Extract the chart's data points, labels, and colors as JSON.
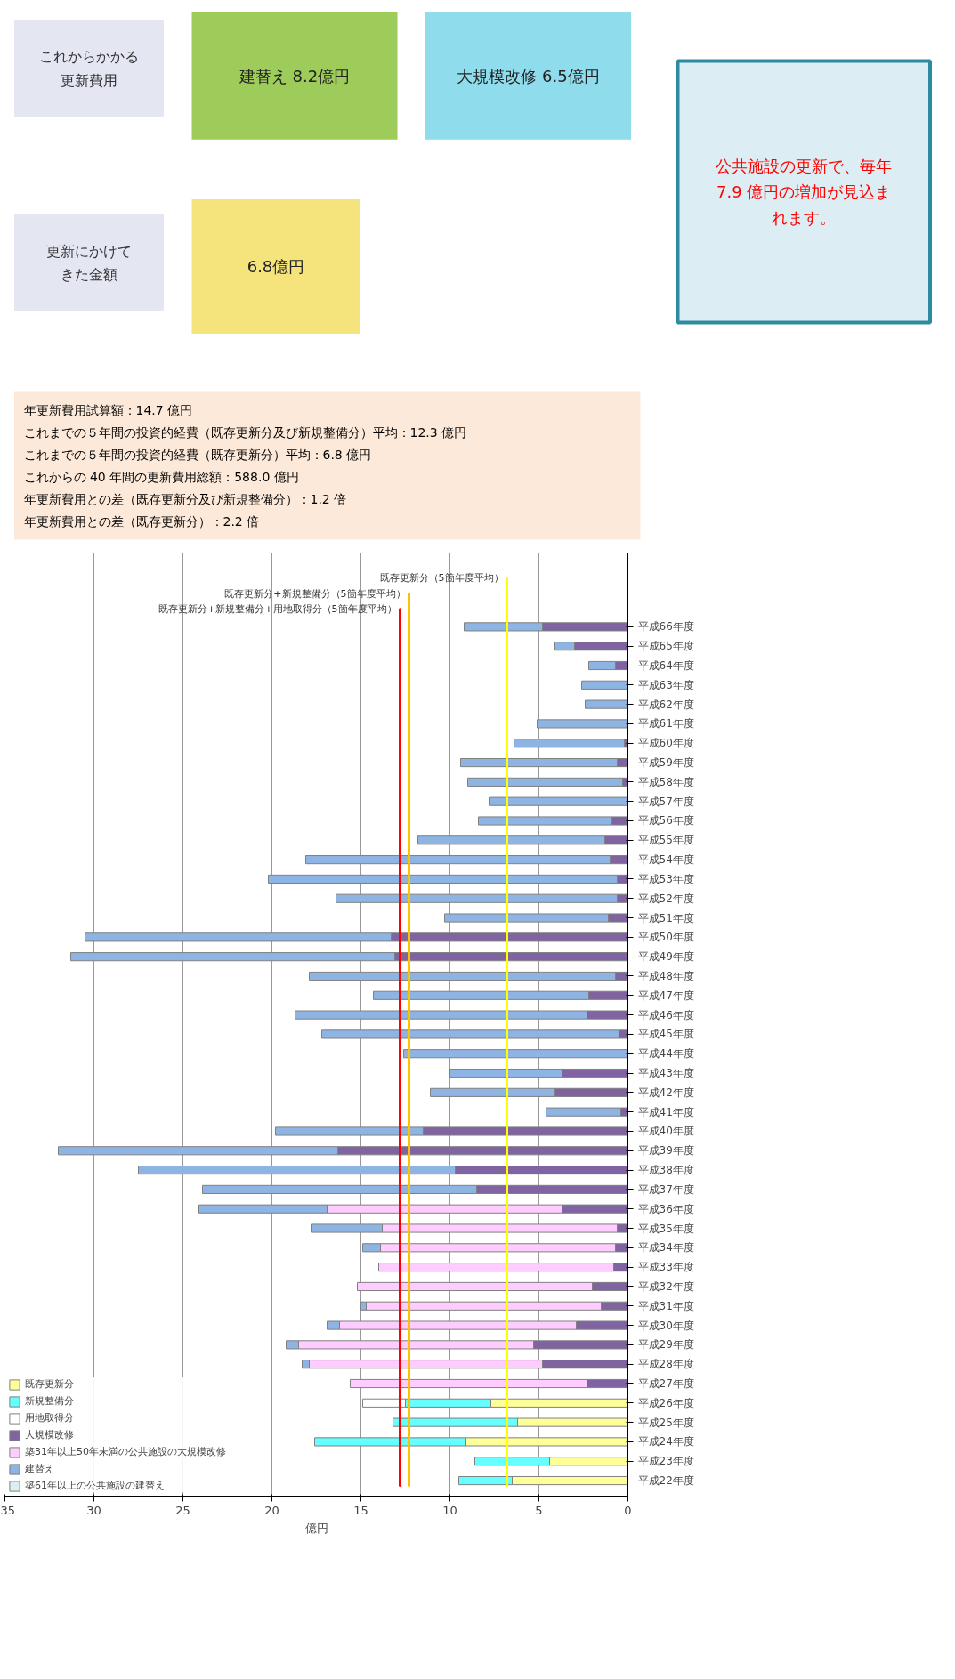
{
  "chart_data": [
    {
      "type": "other",
      "annotations": [
        "これからかかる更新費用",
        "建替え 8.2億円",
        "大規模改修 6.5億円",
        "更新にかけてきた金額",
        "6.8億円",
        "公共施設の更新で、毎年 7.9 億円の増加が見込まれます。"
      ]
    },
    {
      "type": "bar",
      "orientation": "horizontal",
      "stacked": true,
      "xlabel": "億円",
      "annotations": [
        "年更新費用試算額：14.7 億円",
        "これまでの５年間の投資的経費（既存更新分及び新規整備分）平均：12.3 億円",
        "これまでの５年間の投資的経費（既存更新分）平均：6.8 億円",
        "これからの 40 年間の更新費用総額：588.0 億円",
        "年更新費用との差（既存更新分及び新規整備分）：1.2 倍",
        "年更新費用との差（既存更新分）：2.2 倍"
      ],
      "categories": [
        "平成66年度",
        "平成65年度",
        "平成64年度",
        "平成63年度",
        "平成62年度",
        "平成61年度",
        "平成60年度",
        "平成59年度",
        "平成58年度",
        "平成57年度",
        "平成56年度",
        "平成55年度",
        "平成54年度",
        "平成53年度",
        "平成52年度",
        "平成51年度",
        "平成50年度",
        "平成49年度",
        "平成48年度",
        "平成47年度",
        "平成46年度",
        "平成45年度",
        "平成44年度",
        "平成43年度",
        "平成42年度",
        "平成41年度",
        "平成40年度",
        "平成39年度",
        "平成38年度",
        "平成37年度",
        "平成36年度",
        "平成35年度",
        "平成34年度",
        "平成33年度",
        "平成32年度",
        "平成31年度",
        "平成30年度",
        "平成29年度",
        "平成28年度",
        "平成27年度",
        "平成26年度",
        "平成25年度",
        "平成24年度",
        "平成23年度",
        "平成22年度"
      ],
      "series": [
        {
          "name": "既存更新分",
          "color": "#ffff99",
          "values": [
            null,
            null,
            null,
            null,
            null,
            null,
            null,
            null,
            null,
            null,
            null,
            null,
            null,
            null,
            null,
            null,
            null,
            null,
            null,
            null,
            null,
            null,
            null,
            null,
            null,
            null,
            null,
            null,
            null,
            null,
            null,
            null,
            null,
            null,
            null,
            null,
            null,
            null,
            null,
            null,
            7.7,
            6.2,
            9.1,
            4.4,
            6.5
          ]
        },
        {
          "name": "新規整備分",
          "color": "#66ffff",
          "values": [
            null,
            null,
            null,
            null,
            null,
            null,
            null,
            null,
            null,
            null,
            null,
            null,
            null,
            null,
            null,
            null,
            null,
            null,
            null,
            null,
            null,
            null,
            null,
            null,
            null,
            null,
            null,
            null,
            null,
            null,
            null,
            null,
            null,
            null,
            null,
            null,
            null,
            null,
            null,
            null,
            4.8,
            7.0,
            8.5,
            4.2,
            3.0
          ]
        },
        {
          "name": "用地取得分",
          "color": "#ffffff",
          "values": [
            null,
            null,
            null,
            null,
            null,
            null,
            null,
            null,
            null,
            null,
            null,
            null,
            null,
            null,
            null,
            null,
            null,
            null,
            null,
            null,
            null,
            null,
            null,
            null,
            null,
            null,
            null,
            null,
            null,
            null,
            null,
            null,
            null,
            null,
            null,
            null,
            null,
            null,
            null,
            null,
            2.4,
            null,
            null,
            null,
            null
          ]
        },
        {
          "name": "大規模改修",
          "color": "#8064a2",
          "values": [
            4.8,
            3.0,
            0.7,
            null,
            null,
            null,
            0.2,
            0.6,
            0.3,
            null,
            0.9,
            1.3,
            1.0,
            0.6,
            0.6,
            1.1,
            13.3,
            13.1,
            0.7,
            2.2,
            2.3,
            0.5,
            null,
            3.7,
            4.1,
            0.4,
            11.5,
            16.3,
            9.7,
            8.5,
            3.7,
            0.6,
            0.7,
            0.8,
            2.0,
            1.5,
            2.9,
            5.3,
            4.8,
            2.3,
            null,
            null,
            null,
            null,
            null
          ]
        },
        {
          "name": "築31年以上50年未満の公共施設の大規模改修",
          "color": "#ffccff",
          "values": [
            null,
            null,
            null,
            null,
            null,
            null,
            null,
            null,
            null,
            null,
            null,
            null,
            null,
            null,
            null,
            null,
            null,
            null,
            null,
            null,
            null,
            null,
            null,
            null,
            null,
            null,
            null,
            null,
            null,
            null,
            13.2,
            13.2,
            13.2,
            13.2,
            13.2,
            13.2,
            13.3,
            13.2,
            13.1,
            13.3,
            null,
            null,
            null,
            null,
            null
          ]
        },
        {
          "name": "建替え",
          "color": "#8db4e2",
          "values": [
            4.4,
            1.1,
            1.5,
            2.6,
            2.4,
            5.1,
            6.2,
            8.8,
            8.7,
            7.8,
            7.5,
            10.5,
            17.1,
            19.6,
            15.8,
            9.2,
            17.2,
            18.2,
            17.2,
            12.1,
            16.4,
            16.7,
            12.6,
            6.3,
            7.0,
            4.2,
            8.3,
            15.7,
            17.8,
            15.4,
            7.2,
            4.0,
            1.0,
            null,
            null,
            0.3,
            0.7,
            0.7,
            0.4,
            null,
            null,
            null,
            null,
            null,
            null
          ]
        },
        {
          "name": "築61年以上の公共施設の建替え",
          "color": "#daeef3",
          "values": [
            null,
            null,
            null,
            null,
            null,
            null,
            null,
            null,
            null,
            null,
            null,
            null,
            null,
            null,
            null,
            null,
            null,
            null,
            null,
            null,
            null,
            null,
            null,
            null,
            null,
            null,
            null,
            null,
            null,
            null,
            null,
            null,
            null,
            null,
            null,
            null,
            null,
            null,
            null,
            null,
            null,
            null,
            null,
            null,
            null
          ]
        }
      ],
      "ref_lines": [
        {
          "axis": "x",
          "value": 12.3,
          "label": "既存更新分+新規整備分（5箇年度平均）",
          "color": "#ffc000"
        },
        {
          "axis": "x",
          "value": 6.8,
          "label": "既存更新分（5箇年度平均）",
          "color": "#ffff00"
        },
        {
          "axis": "x",
          "value": 12.8,
          "label": "既存更新分+新規整備分+用地取得分（5箇年度平均）",
          "color": "#ff0000"
        }
      ],
      "xlim": [
        35,
        0
      ],
      "xticks": [
        0,
        5,
        10,
        15,
        20,
        25,
        30,
        35
      ],
      "grid": "x",
      "legend": "bottom left"
    }
  ]
}
